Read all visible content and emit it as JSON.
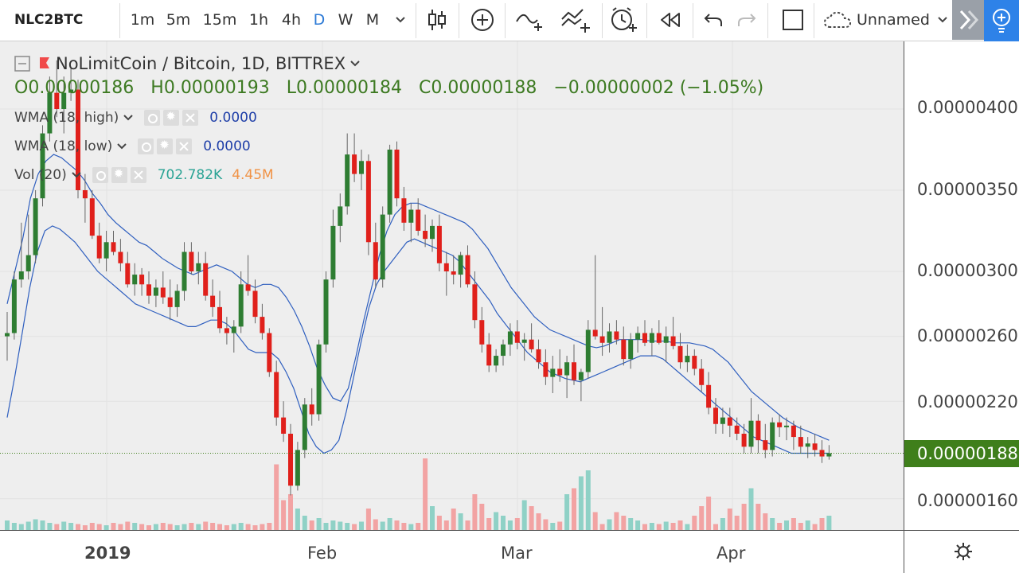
{
  "toolbar": {
    "symbol": "NLC2BTC",
    "timeframes": [
      "1m",
      "5m",
      "15m",
      "1h",
      "4h",
      "D",
      "W",
      "M"
    ],
    "active_timeframe": "D",
    "layout_name": "Unnamed"
  },
  "legend": {
    "title": "NoLimitCoin / Bitcoin, 1D, BITTREX",
    "open": "O0.00000186",
    "high": "H0.00000193",
    "low": "L0.00000184",
    "close": "C0.00000188",
    "change": "−0.00000002 (−1.05%)",
    "indicators": [
      {
        "label": "WMA (18, high)",
        "value": "0.0000"
      },
      {
        "label": "WMA (18, low)",
        "value": "0.0000"
      },
      {
        "label": "Vol (20)",
        "value": "702.782K",
        "value2": "4.45M"
      }
    ]
  },
  "price_axis": {
    "labels": [
      "0.00000400",
      "0.00000350",
      "0.00000300",
      "0.00000260",
      "0.00000220",
      "0.00000160"
    ],
    "last_price": "0.00000188"
  },
  "time_axis": {
    "labels": [
      "2019",
      "Feb",
      "Mar",
      "Apr"
    ]
  },
  "colors": {
    "up": "#2e7d32",
    "down": "#e0201b",
    "vol_up": "#8fd1c6",
    "vol_down": "#f2a3a3",
    "wma": "#2f5fbf",
    "accent": "#2e82e8",
    "last_price_tag": "#3f7f1b"
  },
  "chart_data": {
    "type": "candlestick",
    "symbol": "NoLimitCoin / Bitcoin",
    "interval": "1D",
    "exchange": "BITTREX",
    "y_unit": "BTC",
    "ylim": [
      1.5e-06,
      4.3e-06
    ],
    "last_bar": {
      "open": 1.86e-06,
      "high": 1.93e-06,
      "low": 1.84e-06,
      "close": 1.88e-06,
      "change": -2e-08,
      "change_pct": -1.05
    },
    "candles": [
      {
        "o": 260,
        "h": 275,
        "l": 245,
        "c": 262
      },
      {
        "o": 262,
        "h": 300,
        "l": 258,
        "c": 295
      },
      {
        "o": 295,
        "h": 330,
        "l": 290,
        "c": 300
      },
      {
        "o": 300,
        "h": 335,
        "l": 295,
        "c": 310
      },
      {
        "o": 310,
        "h": 350,
        "l": 305,
        "c": 345
      },
      {
        "o": 345,
        "h": 390,
        "l": 340,
        "c": 385
      },
      {
        "o": 385,
        "h": 420,
        "l": 380,
        "c": 410
      },
      {
        "o": 410,
        "h": 430,
        "l": 395,
        "c": 400
      },
      {
        "o": 400,
        "h": 420,
        "l": 385,
        "c": 410
      },
      {
        "o": 410,
        "h": 425,
        "l": 405,
        "c": 412
      },
      {
        "o": 412,
        "h": 418,
        "l": 345,
        "c": 350
      },
      {
        "o": 350,
        "h": 360,
        "l": 330,
        "c": 345
      },
      {
        "o": 345,
        "h": 350,
        "l": 320,
        "c": 322
      },
      {
        "o": 322,
        "h": 330,
        "l": 305,
        "c": 308
      },
      {
        "o": 308,
        "h": 325,
        "l": 300,
        "c": 318
      },
      {
        "o": 318,
        "h": 325,
        "l": 310,
        "c": 312
      },
      {
        "o": 312,
        "h": 320,
        "l": 300,
        "c": 305
      },
      {
        "o": 305,
        "h": 312,
        "l": 290,
        "c": 292
      },
      {
        "o": 292,
        "h": 305,
        "l": 285,
        "c": 298
      },
      {
        "o": 298,
        "h": 302,
        "l": 285,
        "c": 292
      },
      {
        "o": 292,
        "h": 300,
        "l": 280,
        "c": 285
      },
      {
        "o": 285,
        "h": 295,
        "l": 278,
        "c": 290
      },
      {
        "o": 290,
        "h": 300,
        "l": 280,
        "c": 284
      },
      {
        "o": 284,
        "h": 295,
        "l": 270,
        "c": 278
      },
      {
        "o": 278,
        "h": 292,
        "l": 272,
        "c": 288
      },
      {
        "o": 288,
        "h": 318,
        "l": 282,
        "c": 312
      },
      {
        "o": 312,
        "h": 318,
        "l": 298,
        "c": 300
      },
      {
        "o": 300,
        "h": 312,
        "l": 292,
        "c": 305
      },
      {
        "o": 305,
        "h": 312,
        "l": 282,
        "c": 285
      },
      {
        "o": 285,
        "h": 295,
        "l": 272,
        "c": 278
      },
      {
        "o": 278,
        "h": 288,
        "l": 262,
        "c": 265
      },
      {
        "o": 265,
        "h": 272,
        "l": 255,
        "c": 262
      },
      {
        "o": 262,
        "h": 270,
        "l": 250,
        "c": 266
      },
      {
        "o": 266,
        "h": 300,
        "l": 262,
        "c": 292
      },
      {
        "o": 292,
        "h": 310,
        "l": 285,
        "c": 288
      },
      {
        "o": 288,
        "h": 295,
        "l": 268,
        "c": 272
      },
      {
        "o": 272,
        "h": 280,
        "l": 258,
        "c": 262
      },
      {
        "o": 262,
        "h": 265,
        "l": 235,
        "c": 238
      },
      {
        "o": 238,
        "h": 245,
        "l": 205,
        "c": 210
      },
      {
        "o": 210,
        "h": 220,
        "l": 195,
        "c": 200
      },
      {
        "o": 200,
        "h": 206,
        "l": 162,
        "c": 168
      },
      {
        "o": 168,
        "h": 195,
        "l": 165,
        "c": 190
      },
      {
        "o": 190,
        "h": 222,
        "l": 185,
        "c": 218
      },
      {
        "o": 218,
        "h": 228,
        "l": 205,
        "c": 212
      },
      {
        "o": 212,
        "h": 258,
        "l": 208,
        "c": 255
      },
      {
        "o": 255,
        "h": 300,
        "l": 250,
        "c": 295
      },
      {
        "o": 295,
        "h": 338,
        "l": 290,
        "c": 328
      },
      {
        "o": 328,
        "h": 348,
        "l": 318,
        "c": 340
      },
      {
        "o": 340,
        "h": 385,
        "l": 335,
        "c": 372
      },
      {
        "o": 372,
        "h": 385,
        "l": 355,
        "c": 360
      },
      {
        "o": 360,
        "h": 375,
        "l": 350,
        "c": 368
      },
      {
        "o": 368,
        "h": 372,
        "l": 310,
        "c": 318
      },
      {
        "o": 318,
        "h": 330,
        "l": 290,
        "c": 295
      },
      {
        "o": 295,
        "h": 340,
        "l": 290,
        "c": 335
      },
      {
        "o": 335,
        "h": 378,
        "l": 330,
        "c": 375
      },
      {
        "o": 375,
        "h": 380,
        "l": 340,
        "c": 345
      },
      {
        "o": 345,
        "h": 352,
        "l": 325,
        "c": 330
      },
      {
        "o": 330,
        "h": 342,
        "l": 318,
        "c": 338
      },
      {
        "o": 338,
        "h": 345,
        "l": 322,
        "c": 325
      },
      {
        "o": 325,
        "h": 335,
        "l": 315,
        "c": 320
      },
      {
        "o": 320,
        "h": 332,
        "l": 312,
        "c": 328
      },
      {
        "o": 328,
        "h": 335,
        "l": 300,
        "c": 305
      },
      {
        "o": 305,
        "h": 312,
        "l": 285,
        "c": 300
      },
      {
        "o": 300,
        "h": 310,
        "l": 292,
        "c": 298
      },
      {
        "o": 298,
        "h": 312,
        "l": 290,
        "c": 310
      },
      {
        "o": 310,
        "h": 316,
        "l": 290,
        "c": 292
      },
      {
        "o": 292,
        "h": 300,
        "l": 265,
        "c": 270
      },
      {
        "o": 270,
        "h": 278,
        "l": 250,
        "c": 255
      },
      {
        "o": 255,
        "h": 262,
        "l": 238,
        "c": 242
      },
      {
        "o": 242,
        "h": 252,
        "l": 238,
        "c": 248
      },
      {
        "o": 248,
        "h": 258,
        "l": 242,
        "c": 255
      },
      {
        "o": 255,
        "h": 268,
        "l": 248,
        "c": 263
      },
      {
        "o": 263,
        "h": 270,
        "l": 252,
        "c": 256
      },
      {
        "o": 256,
        "h": 262,
        "l": 245,
        "c": 258
      },
      {
        "o": 258,
        "h": 268,
        "l": 250,
        "c": 252
      },
      {
        "o": 252,
        "h": 258,
        "l": 240,
        "c": 244
      },
      {
        "o": 244,
        "h": 252,
        "l": 230,
        "c": 235
      },
      {
        "o": 235,
        "h": 248,
        "l": 225,
        "c": 240
      },
      {
        "o": 240,
        "h": 252,
        "l": 232,
        "c": 236
      },
      {
        "o": 236,
        "h": 248,
        "l": 222,
        "c": 244
      },
      {
        "o": 244,
        "h": 255,
        "l": 230,
        "c": 233
      },
      {
        "o": 233,
        "h": 240,
        "l": 220,
        "c": 238
      },
      {
        "o": 238,
        "h": 270,
        "l": 234,
        "c": 264
      },
      {
        "o": 264,
        "h": 310,
        "l": 258,
        "c": 260
      },
      {
        "o": 260,
        "h": 278,
        "l": 248,
        "c": 256
      },
      {
        "o": 256,
        "h": 268,
        "l": 250,
        "c": 263
      },
      {
        "o": 263,
        "h": 270,
        "l": 255,
        "c": 258
      },
      {
        "o": 258,
        "h": 266,
        "l": 242,
        "c": 246
      },
      {
        "o": 246,
        "h": 262,
        "l": 240,
        "c": 258
      },
      {
        "o": 258,
        "h": 266,
        "l": 250,
        "c": 262
      },
      {
        "o": 262,
        "h": 270,
        "l": 254,
        "c": 256
      },
      {
        "o": 256,
        "h": 265,
        "l": 248,
        "c": 262
      },
      {
        "o": 262,
        "h": 270,
        "l": 255,
        "c": 256
      },
      {
        "o": 256,
        "h": 266,
        "l": 244,
        "c": 260
      },
      {
        "o": 260,
        "h": 272,
        "l": 252,
        "c": 254
      },
      {
        "o": 254,
        "h": 262,
        "l": 240,
        "c": 244
      },
      {
        "o": 244,
        "h": 255,
        "l": 238,
        "c": 248
      },
      {
        "o": 248,
        "h": 252,
        "l": 236,
        "c": 240
      },
      {
        "o": 240,
        "h": 246,
        "l": 226,
        "c": 230
      },
      {
        "o": 230,
        "h": 238,
        "l": 212,
        "c": 216
      },
      {
        "o": 216,
        "h": 222,
        "l": 200,
        "c": 206
      },
      {
        "o": 206,
        "h": 216,
        "l": 200,
        "c": 210
      },
      {
        "o": 210,
        "h": 216,
        "l": 198,
        "c": 205
      },
      {
        "o": 205,
        "h": 210,
        "l": 196,
        "c": 200
      },
      {
        "o": 200,
        "h": 206,
        "l": 188,
        "c": 192
      },
      {
        "o": 192,
        "h": 222,
        "l": 188,
        "c": 208
      },
      {
        "o": 208,
        "h": 212,
        "l": 188,
        "c": 196
      },
      {
        "o": 196,
        "h": 206,
        "l": 185,
        "c": 190
      },
      {
        "o": 190,
        "h": 210,
        "l": 186,
        "c": 207
      },
      {
        "o": 207,
        "h": 212,
        "l": 198,
        "c": 204
      },
      {
        "o": 204,
        "h": 210,
        "l": 196,
        "c": 205
      },
      {
        "o": 205,
        "h": 208,
        "l": 190,
        "c": 198
      },
      {
        "o": 198,
        "h": 205,
        "l": 188,
        "c": 192
      },
      {
        "o": 192,
        "h": 198,
        "l": 185,
        "c": 194
      },
      {
        "o": 194,
        "h": 200,
        "l": 186,
        "c": 190
      },
      {
        "o": 190,
        "h": 196,
        "l": 182,
        "c": 186
      },
      {
        "o": 186,
        "h": 193,
        "l": 184,
        "c": 188
      }
    ],
    "candle_scale": "values x 1e-8 BTC",
    "volume_max": 4450000,
    "volume_rel": [
      0.08,
      0.06,
      0.05,
      0.07,
      0.09,
      0.08,
      0.06,
      0.05,
      0.07,
      0.06,
      0.05,
      0.04,
      0.06,
      0.05,
      0.04,
      0.06,
      0.05,
      0.07,
      0.06,
      0.05,
      0.04,
      0.05,
      0.06,
      0.05,
      0.04,
      0.05,
      0.06,
      0.05,
      0.07,
      0.06,
      0.05,
      0.04,
      0.05,
      0.06,
      0.05,
      0.04,
      0.05,
      0.06,
      0.55,
      0.25,
      0.3,
      0.18,
      0.12,
      0.08,
      0.1,
      0.06,
      0.08,
      0.07,
      0.06,
      0.05,
      0.07,
      0.18,
      0.09,
      0.07,
      0.1,
      0.08,
      0.06,
      0.05,
      0.06,
      0.6,
      0.2,
      0.12,
      0.08,
      0.18,
      0.14,
      0.08,
      0.3,
      0.22,
      0.1,
      0.15,
      0.12,
      0.08,
      0.1,
      0.25,
      0.2,
      0.14,
      0.09,
      0.06,
      0.07,
      0.3,
      0.35,
      0.45,
      0.5,
      0.15,
      0.05,
      0.09,
      0.15,
      0.12,
      0.1,
      0.08,
      0.05,
      0.06,
      0.05,
      0.07,
      0.06,
      0.08,
      0.05,
      0.12,
      0.2,
      0.28,
      0.05,
      0.1,
      0.18,
      0.12,
      0.22,
      0.35,
      0.22,
      0.14,
      0.1,
      0.06,
      0.08,
      0.1,
      0.06,
      0.08,
      0.05,
      0.1,
      0.12,
      0.25,
      0.06,
      0.05,
      0.08
    ],
    "volume_dir": "follows candle direction",
    "wma_high": [
      280,
      300,
      320,
      345,
      360,
      368,
      372,
      370,
      366,
      362,
      356,
      348,
      342,
      335,
      330,
      326,
      322,
      318,
      316,
      312,
      308,
      305,
      302,
      300,
      298,
      300,
      302,
      304,
      302,
      300,
      296,
      292,
      290,
      292,
      292,
      290,
      284,
      276,
      266,
      254,
      240,
      230,
      222,
      220,
      228,
      248,
      270,
      290,
      310,
      325,
      335,
      340,
      342,
      342,
      340,
      338,
      336,
      334,
      332,
      330,
      326,
      320,
      314,
      306,
      298,
      290,
      284,
      278,
      272,
      268,
      264,
      262,
      260,
      258,
      256,
      254,
      253,
      254,
      256,
      258,
      258,
      258,
      258,
      257,
      257,
      257,
      256,
      256,
      256,
      255,
      254,
      252,
      248,
      244,
      238,
      232,
      226,
      222,
      218,
      214,
      210,
      207,
      204,
      202,
      200,
      198,
      196
    ],
    "wma_low": [
      210,
      235,
      262,
      290,
      312,
      325,
      328,
      326,
      322,
      318,
      312,
      306,
      300,
      296,
      292,
      288,
      284,
      280,
      278,
      276,
      274,
      272,
      270,
      268,
      266,
      266,
      268,
      270,
      270,
      268,
      264,
      258,
      252,
      250,
      250,
      250,
      246,
      238,
      228,
      214,
      200,
      192,
      188,
      190,
      196,
      214,
      236,
      258,
      278,
      292,
      300,
      306,
      312,
      318,
      320,
      318,
      316,
      314,
      312,
      310,
      306,
      300,
      294,
      288,
      282,
      274,
      268,
      262,
      256,
      250,
      246,
      242,
      238,
      236,
      234,
      233,
      232,
      234,
      236,
      238,
      240,
      242,
      244,
      246,
      248,
      248,
      248,
      246,
      242,
      238,
      234,
      230,
      226,
      222,
      218,
      214,
      210,
      206,
      202,
      198,
      196,
      194,
      192,
      190,
      188,
      188,
      188,
      188,
      188,
      188
    ]
  }
}
